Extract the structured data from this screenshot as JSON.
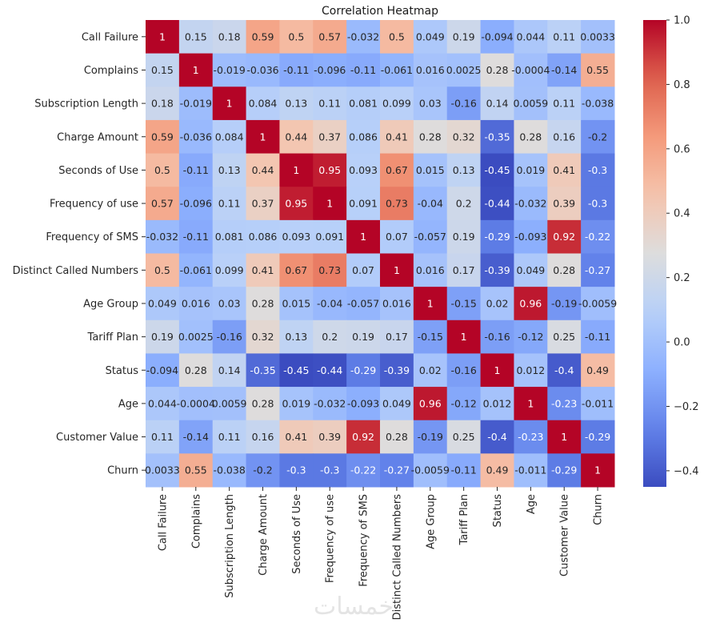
{
  "chart_data": {
    "type": "heatmap",
    "title": "Correlation Heatmap",
    "xlabel": "",
    "ylabel": "",
    "colormap": "coolwarm",
    "annotated": true,
    "labels": [
      "Call Failure",
      "Complains",
      "Subscription Length",
      "Charge Amount",
      "Seconds of Use",
      "Frequency of use",
      "Frequency of SMS",
      "Distinct Called Numbers",
      "Age Group",
      "Tariff Plan",
      "Status",
      "Age",
      "Customer Value",
      "Churn"
    ],
    "matrix": [
      [
        "1",
        "0.15",
        "0.18",
        "0.59",
        "0.5",
        "0.57",
        "-0.032",
        "0.5",
        "0.049",
        "0.19",
        "-0.094",
        "0.044",
        "0.11",
        "0.0033"
      ],
      [
        "0.15",
        "1",
        "-0.019",
        "-0.036",
        "-0.11",
        "-0.096",
        "-0.11",
        "-0.061",
        "0.016",
        "0.0025",
        "0.28",
        "-0.0004",
        "-0.14",
        "0.55"
      ],
      [
        "0.18",
        "-0.019",
        "1",
        "0.084",
        "0.13",
        "0.11",
        "0.081",
        "0.099",
        "0.03",
        "-0.16",
        "0.14",
        "0.0059",
        "0.11",
        "-0.038"
      ],
      [
        "0.59",
        "-0.036",
        "0.084",
        "1",
        "0.44",
        "0.37",
        "0.086",
        "0.41",
        "0.28",
        "0.32",
        "-0.35",
        "0.28",
        "0.16",
        "-0.2"
      ],
      [
        "0.5",
        "-0.11",
        "0.13",
        "0.44",
        "1",
        "0.95",
        "0.093",
        "0.67",
        "0.015",
        "0.13",
        "-0.45",
        "0.019",
        "0.41",
        "-0.3"
      ],
      [
        "0.57",
        "-0.096",
        "0.11",
        "0.37",
        "0.95",
        "1",
        "0.091",
        "0.73",
        "-0.04",
        "0.2",
        "-0.44",
        "-0.032",
        "0.39",
        "-0.3"
      ],
      [
        "-0.032",
        "-0.11",
        "0.081",
        "0.086",
        "0.093",
        "0.091",
        "1",
        "0.07",
        "-0.057",
        "0.19",
        "-0.29",
        "-0.093",
        "0.92",
        "-0.22"
      ],
      [
        "0.5",
        "-0.061",
        "0.099",
        "0.41",
        "0.67",
        "0.73",
        "0.07",
        "1",
        "0.016",
        "0.17",
        "-0.39",
        "0.049",
        "0.28",
        "-0.27"
      ],
      [
        "0.049",
        "0.016",
        "0.03",
        "0.28",
        "0.015",
        "-0.04",
        "-0.057",
        "0.016",
        "1",
        "-0.15",
        "0.02",
        "0.96",
        "-0.19",
        "-0.0059"
      ],
      [
        "0.19",
        "0.0025",
        "-0.16",
        "0.32",
        "0.13",
        "0.2",
        "0.19",
        "0.17",
        "-0.15",
        "1",
        "-0.16",
        "-0.12",
        "0.25",
        "-0.11"
      ],
      [
        "-0.094",
        "0.28",
        "0.14",
        "-0.35",
        "-0.45",
        "-0.44",
        "-0.29",
        "-0.39",
        "0.02",
        "-0.16",
        "1",
        "0.012",
        "-0.4",
        "0.49"
      ],
      [
        "0.044",
        "-0.0004",
        "0.0059",
        "0.28",
        "0.019",
        "-0.032",
        "-0.093",
        "0.049",
        "0.96",
        "-0.12",
        "0.012",
        "1",
        "-0.23",
        "-0.011"
      ],
      [
        "0.11",
        "-0.14",
        "0.11",
        "0.16",
        "0.41",
        "0.39",
        "0.92",
        "0.28",
        "-0.19",
        "0.25",
        "-0.4",
        "-0.23",
        "1",
        "-0.29"
      ],
      [
        "0.0033",
        "0.55",
        "-0.038",
        "-0.2",
        "-0.3",
        "-0.3",
        "-0.22",
        "-0.27",
        "-0.0059",
        "-0.11",
        "0.49",
        "-0.011",
        "-0.29",
        "1"
      ]
    ],
    "colorbar": {
      "vmin": -0.45,
      "vmax": 1.0,
      "ticks": [
        1.0,
        0.8,
        0.6,
        0.4,
        0.2,
        0.0,
        -0.2,
        -0.4
      ],
      "tick_labels": [
        "1.0",
        "0.8",
        "0.6",
        "0.4",
        "0.2",
        "0.0",
        "−0.2",
        "−0.4"
      ],
      "placement": "right"
    },
    "grid": false
  },
  "watermark": "خمسات"
}
